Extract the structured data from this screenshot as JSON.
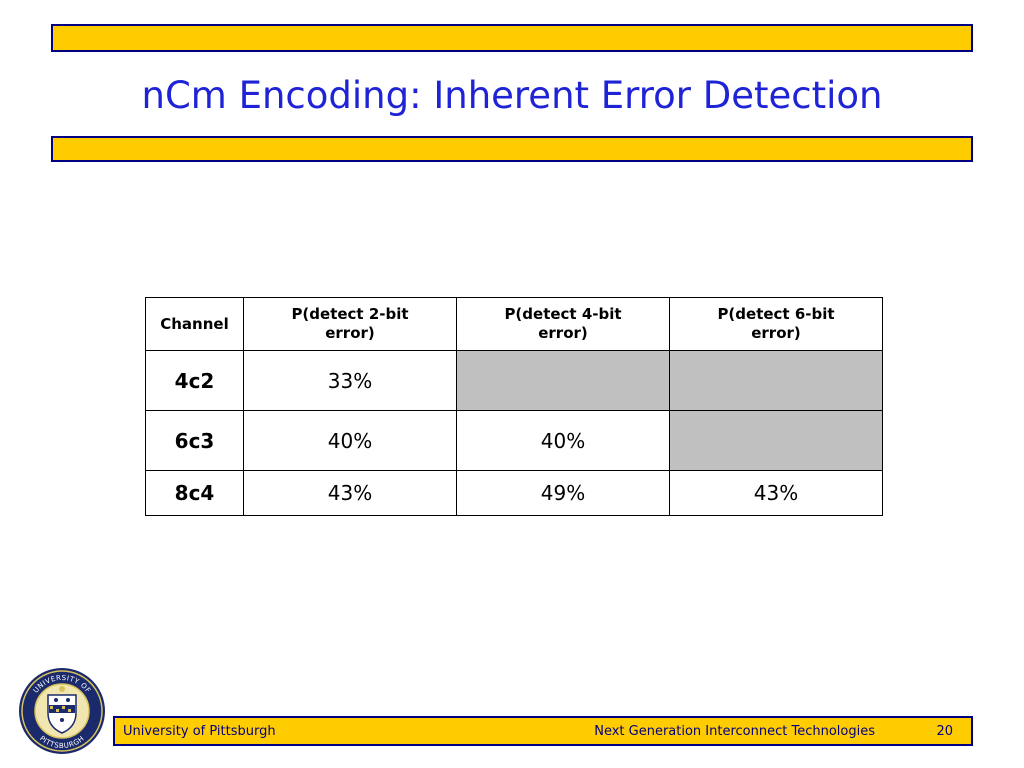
{
  "slide": {
    "title": "nCm Encoding:  Inherent Error Detection"
  },
  "table": {
    "headers": [
      "Channel",
      "P(detect 2-bit error)",
      "P(detect 4-bit error)",
      "P(detect 6-bit error)"
    ],
    "rows": [
      {
        "channel": "4c2",
        "p2": "33%",
        "p4": "",
        "p6": ""
      },
      {
        "channel": "6c3",
        "p2": "40%",
        "p4": "40%",
        "p6": ""
      },
      {
        "channel": "8c4",
        "p2": "43%",
        "p4": "49%",
        "p6": "43%"
      }
    ]
  },
  "seal": {
    "text": "UNIVERSITY OF PITTSBURGH",
    "icon": "university-seal-icon"
  },
  "footer": {
    "left": "University of Pittsburgh",
    "right": "Next Generation Interconnect Technologies",
    "page": "20"
  },
  "colors": {
    "accent_bar": "#FFCC00",
    "border_navy": "#000080",
    "title_blue": "#1F23D6",
    "empty_cell": "#C0C0C0"
  }
}
